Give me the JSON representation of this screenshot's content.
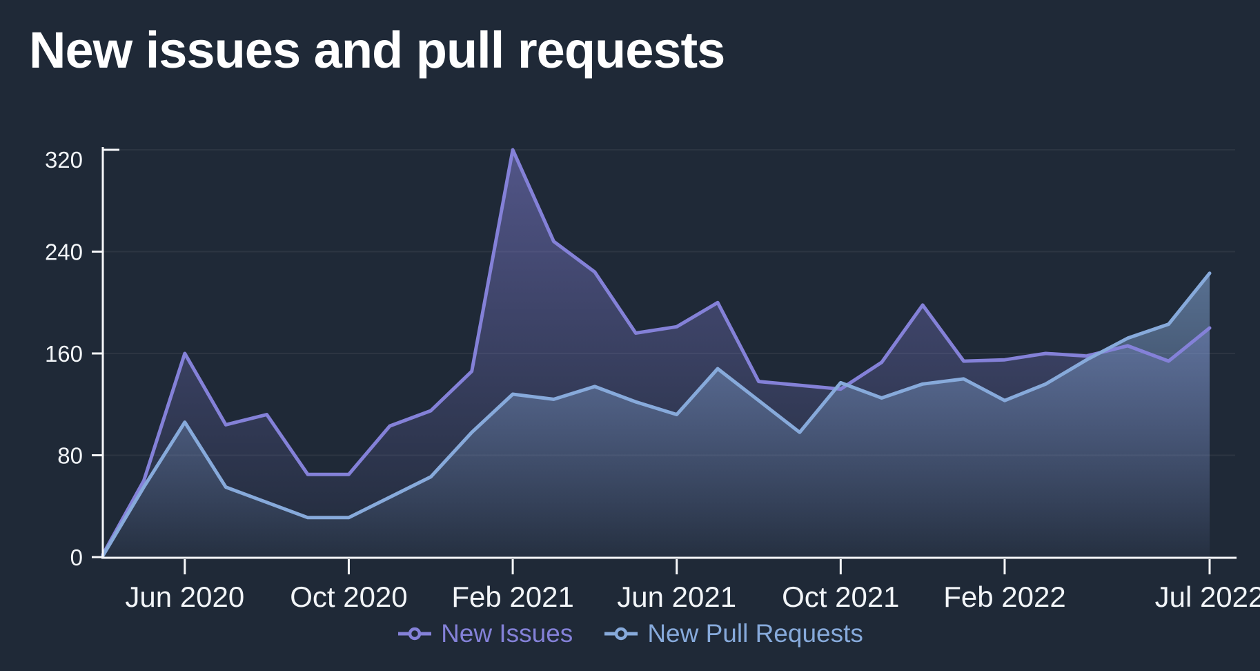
{
  "title": "New issues and pull requests",
  "colors": {
    "background": "#1f2937",
    "axis": "#f7f8fa",
    "grid": "rgba(255,255,255,0.06)",
    "tick_label": "#f2f5f8"
  },
  "chart_data": {
    "type": "area",
    "title": "New issues and pull requests",
    "xlabel": "",
    "ylabel": "",
    "ylim": [
      0,
      320
    ],
    "yticks": [
      0,
      80,
      160,
      240,
      320
    ],
    "grid": "horizontal",
    "legend_position": "bottom-center",
    "x": [
      "Apr 2020",
      "May 2020",
      "Jun 2020",
      "Jul 2020",
      "Aug 2020",
      "Sep 2020",
      "Oct 2020",
      "Nov 2020",
      "Dec 2020",
      "Jan 2021",
      "Feb 2021",
      "Mar 2021",
      "Apr 2021",
      "May 2021",
      "Jun 2021",
      "Jul 2021",
      "Aug 2021",
      "Sep 2021",
      "Oct 2021",
      "Nov 2021",
      "Dec 2021",
      "Jan 2022",
      "Feb 2022",
      "Mar 2022",
      "Apr 2022",
      "May 2022",
      "Jun 2022",
      "Jul 2022"
    ],
    "xtick_labels": [
      {
        "index": 2,
        "label": "Jun 2020"
      },
      {
        "index": 6,
        "label": "Oct 2020"
      },
      {
        "index": 10,
        "label": "Feb 2021"
      },
      {
        "index": 14,
        "label": "Jun 2021"
      },
      {
        "index": 18,
        "label": "Oct 2021"
      },
      {
        "index": 22,
        "label": "Feb 2022"
      },
      {
        "index": 27,
        "label": "Jul 2022"
      }
    ],
    "series": [
      {
        "name": "New Issues",
        "color": "#8481d8",
        "fill_from": "rgba(132,129,216,0.50)",
        "fill_to": "rgba(132,129,216,0.02)",
        "values": [
          2,
          60,
          160,
          104,
          112,
          65,
          65,
          103,
          115,
          146,
          320,
          248,
          224,
          176,
          181,
          200,
          138,
          135,
          132,
          153,
          198,
          154,
          155,
          160,
          158,
          166,
          154,
          180
        ]
      },
      {
        "name": "New Pull Requests",
        "color": "#87aadb",
        "fill_from": "rgba(135,170,219,0.55)",
        "fill_to": "rgba(135,170,219,0.04)",
        "values": [
          1,
          55,
          106,
          55,
          43,
          31,
          31,
          47,
          63,
          98,
          128,
          124,
          134,
          122,
          112,
          148,
          123,
          98,
          137,
          125,
          136,
          140,
          123,
          136,
          155,
          172,
          183,
          223
        ]
      }
    ]
  }
}
